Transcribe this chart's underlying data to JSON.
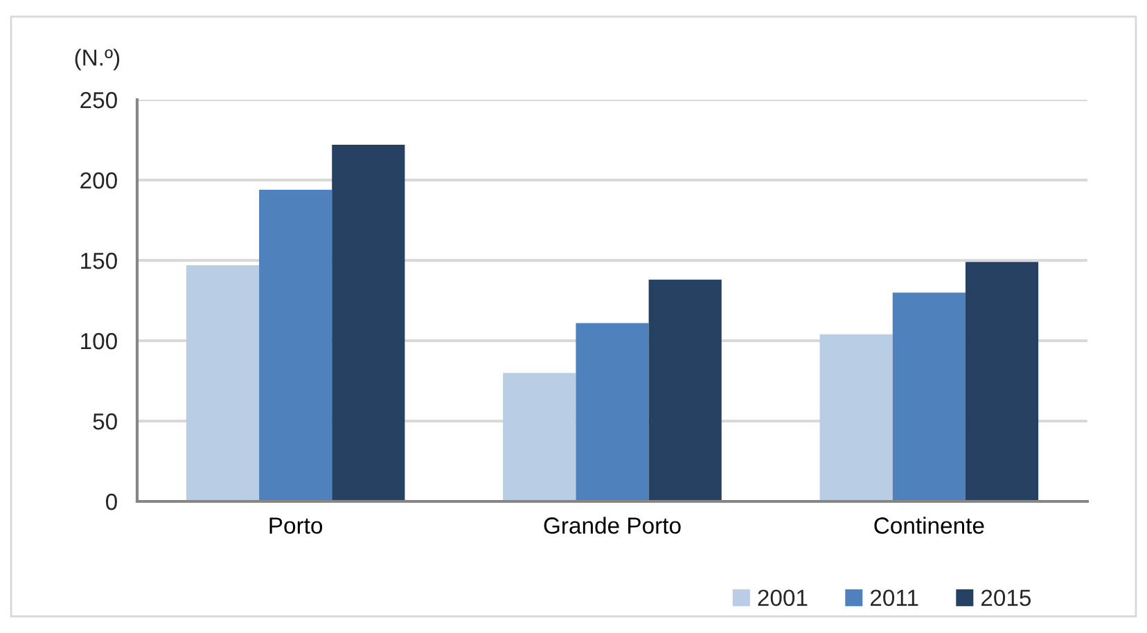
{
  "chart_data": {
    "type": "bar",
    "ylabel": "(N.º)",
    "categories": [
      "Porto",
      "Grande Porto",
      "Continente"
    ],
    "series": [
      {
        "name": "2001",
        "color": "#b9cde5",
        "values": [
          147,
          80,
          104
        ]
      },
      {
        "name": "2011",
        "color": "#4f81bd",
        "values": [
          194,
          111,
          130
        ]
      },
      {
        "name": "2015",
        "color": "#254061",
        "values": [
          222,
          138,
          149
        ]
      }
    ],
    "ylim": [
      0,
      250
    ],
    "yticks": [
      0,
      50,
      100,
      150,
      200,
      250
    ],
    "grid": "y",
    "legend": "bottom right"
  }
}
